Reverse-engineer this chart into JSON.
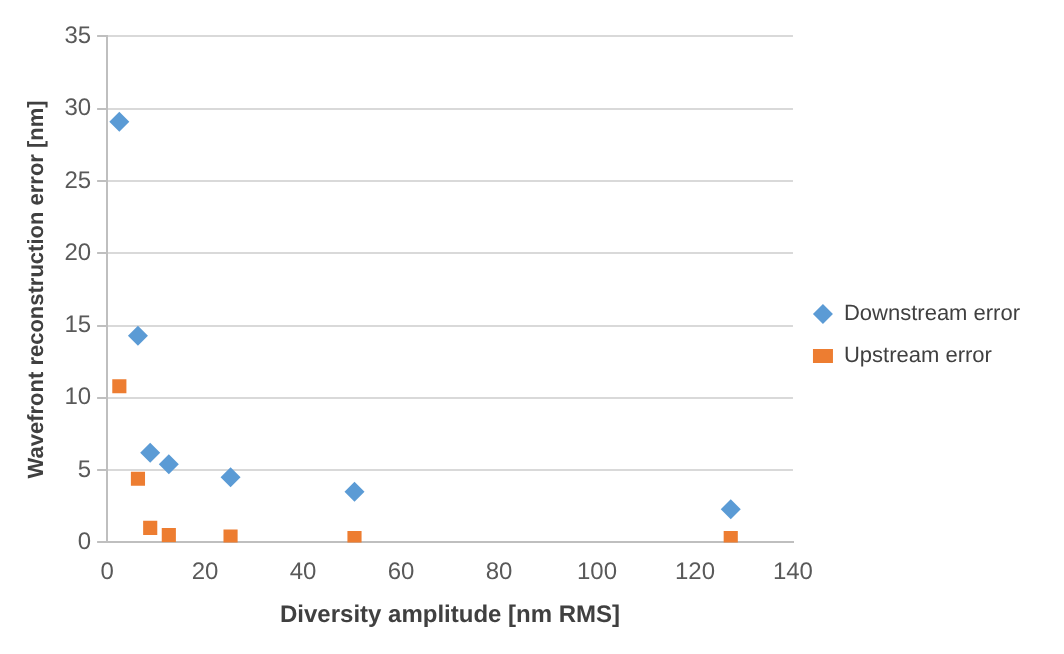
{
  "chart_data": {
    "type": "scatter",
    "xlabel": "Diversity amplitude [nm RMS]",
    "ylabel": "Wavefront reconstruction error [nm]",
    "xlim": [
      0,
      140
    ],
    "xticks": [
      0,
      20,
      40,
      60,
      80,
      100,
      120,
      140
    ],
    "ylim": [
      0,
      35
    ],
    "yticks": [
      0,
      5,
      10,
      15,
      20,
      25,
      30,
      35
    ],
    "grid": "y",
    "legend": "right",
    "series": [
      {
        "name": "Downstream error",
        "color": "#5b9bd5",
        "marker": "diamond",
        "x": [
          2.5,
          6.3,
          8.8,
          12.6,
          25.2,
          50.5,
          127.3
        ],
        "values": [
          29.1,
          14.3,
          6.2,
          5.4,
          4.5,
          3.5,
          2.3
        ]
      },
      {
        "name": "Upstream error",
        "color": "#ed7d31",
        "marker": "square",
        "x": [
          2.5,
          6.3,
          8.8,
          12.6,
          25.2,
          50.5,
          127.3
        ],
        "values": [
          10.8,
          4.4,
          1.0,
          0.5,
          0.4,
          0.3,
          0.3
        ]
      }
    ]
  }
}
